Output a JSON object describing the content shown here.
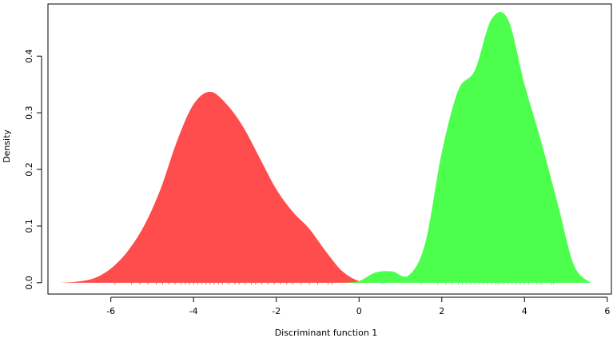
{
  "chart_data": {
    "type": "density",
    "x_label": "Discriminant function 1",
    "y_label": "Density",
    "x": [
      -7.2,
      -6.8,
      -6.4,
      -6.0,
      -5.6,
      -5.2,
      -4.8,
      -4.4,
      -4.0,
      -3.6,
      -3.2,
      -2.8,
      -2.4,
      -2.0,
      -1.6,
      -1.2,
      -0.8,
      -0.4,
      0.0,
      0.4,
      0.8,
      1.2,
      1.6,
      2.0,
      2.4,
      2.8,
      3.2,
      3.6,
      4.0,
      4.4,
      4.8,
      5.2,
      5.6
    ],
    "series": [
      {
        "color": "#ff4c4c",
        "values": [
          0,
          0.002,
          0.008,
          0.025,
          0.055,
          0.1,
          0.165,
          0.25,
          0.315,
          0.337,
          0.315,
          0.275,
          0.22,
          0.165,
          0.125,
          0.095,
          0.055,
          0.02,
          0.003,
          0,
          null,
          null,
          null,
          null,
          null,
          null,
          null,
          null,
          null,
          null,
          null,
          null,
          null
        ],
        "rug": [
          -5.9,
          -5.5,
          -5.3,
          -5.1,
          -4.9,
          -4.75,
          -4.6,
          -4.45,
          -4.3,
          -4.2,
          -4.1,
          -4.0,
          -3.9,
          -3.8,
          -3.7,
          -3.6,
          -3.5,
          -3.4,
          -3.3,
          -3.15,
          -3.0,
          -2.9,
          -2.75,
          -2.6,
          -2.5,
          -2.35,
          -2.2,
          -2.05,
          -1.9,
          -1.75,
          -1.6,
          -1.4,
          -1.2,
          -1.0,
          -0.75,
          -0.65
        ]
      },
      {
        "color": "#4cff4c",
        "values": [
          null,
          null,
          null,
          null,
          null,
          null,
          null,
          null,
          null,
          null,
          null,
          null,
          null,
          null,
          null,
          null,
          null,
          0,
          0.003,
          0.018,
          0.02,
          0.013,
          0.07,
          0.23,
          0.34,
          0.375,
          0.465,
          0.465,
          0.35,
          0.25,
          0.14,
          0.03,
          0
        ],
        "rug": [
          0.55,
          0.6,
          1.5,
          1.9,
          2.1,
          2.25,
          2.4,
          2.5,
          2.6,
          2.7,
          2.8,
          2.9,
          3.0,
          3.1,
          3.2,
          3.3,
          3.35,
          3.4,
          3.5,
          3.6,
          3.7,
          3.8,
          3.9,
          4.0,
          4.1,
          4.3,
          4.4,
          4.65,
          4.7
        ]
      }
    ],
    "xlim": [
      -7.52,
      6.1
    ],
    "xticks": [
      -6,
      -4,
      -2,
      0,
      2,
      4,
      6
    ],
    "ylim": [
      -0.02,
      0.492
    ],
    "yticks": [
      {
        "value": 0,
        "label": "0.0"
      },
      0.1,
      0.2,
      0.3,
      0.4
    ]
  }
}
